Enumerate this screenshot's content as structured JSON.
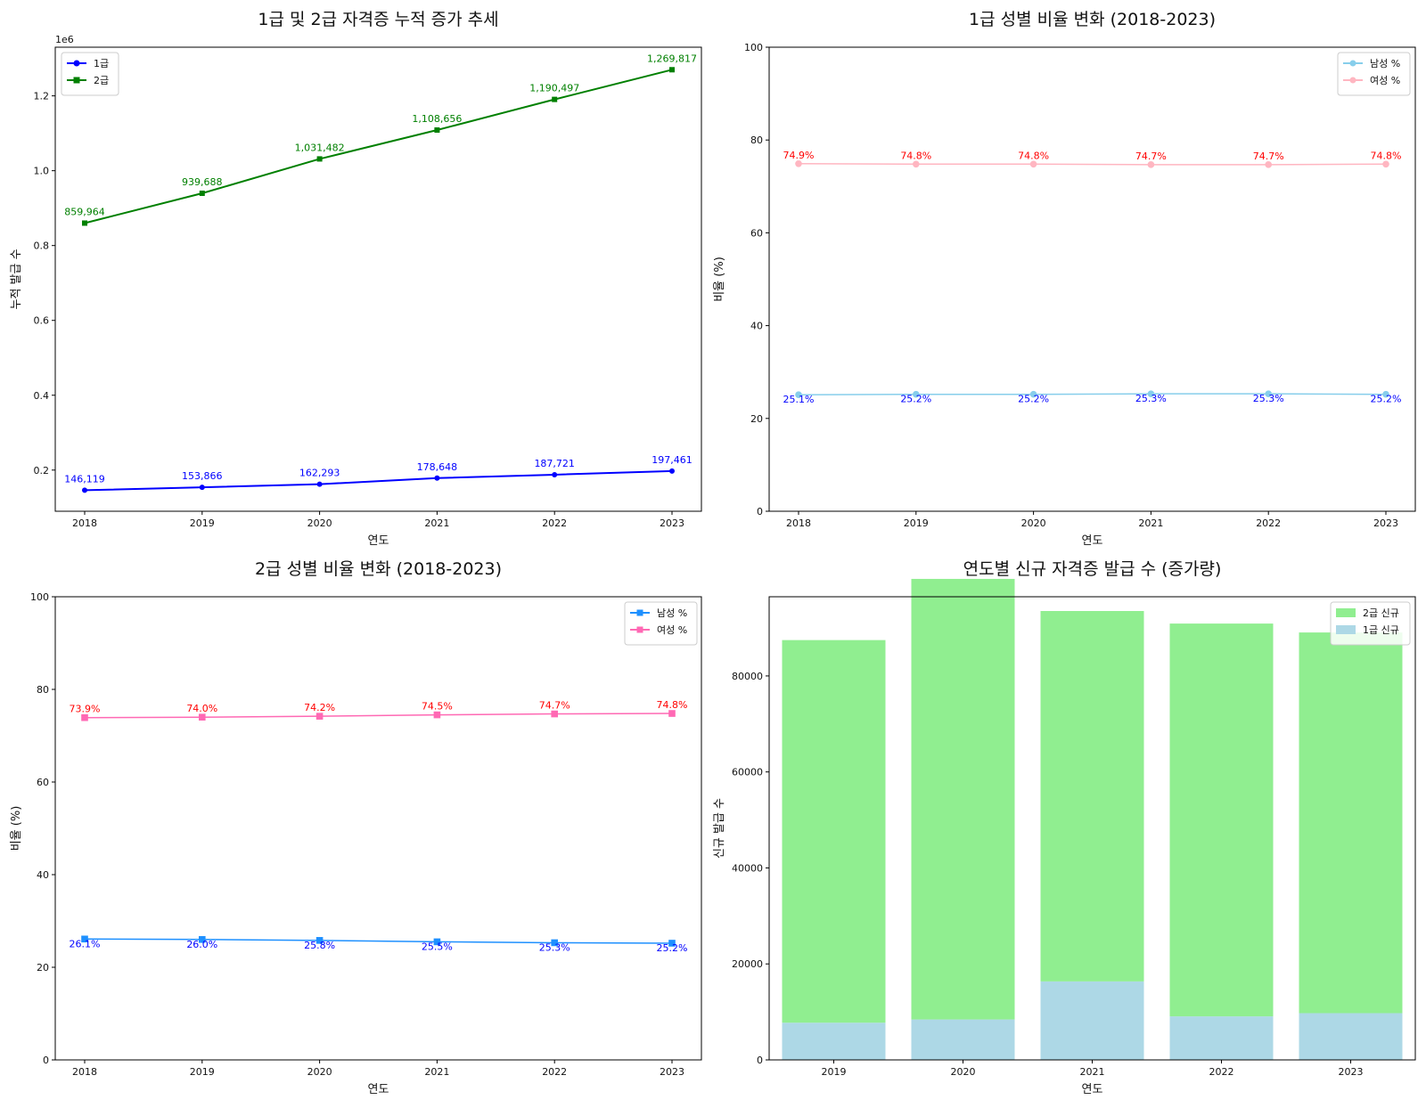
{
  "chart_data": [
    {
      "type": "line",
      "title": "1급 및 2급 자격증 누적 증가 추세",
      "xlabel": "연도",
      "ylabel": "누적 발급 수",
      "offset_text": "1e6",
      "x": [
        "2018",
        "2019",
        "2020",
        "2021",
        "2022",
        "2023"
      ],
      "ylim": [
        0.09,
        1.33
      ],
      "yticks": [
        0.2,
        0.4,
        0.6,
        0.8,
        1.0,
        1.2
      ],
      "ytick_labels": [
        "0.2",
        "0.4",
        "0.6",
        "0.8",
        "1.0",
        "1.2"
      ],
      "value_scale": 1000000,
      "legend_position": "upper-left",
      "series": [
        {
          "name": "1급",
          "color": "#0000ff",
          "marker": "circle",
          "values": [
            146119,
            153866,
            162293,
            178648,
            187721,
            197461
          ],
          "labels": [
            "146,119",
            "153,866",
            "162,293",
            "178,648",
            "187,721",
            "197,461"
          ]
        },
        {
          "name": "2급",
          "color": "#008000",
          "marker": "square",
          "values": [
            859964,
            939688,
            1031482,
            1108656,
            1190497,
            1269817
          ],
          "labels": [
            "859,964",
            "939,688",
            "1,031,482",
            "1,108,656",
            "1,190,497",
            "1,269,817"
          ]
        }
      ]
    },
    {
      "type": "line",
      "title": "1급 성별 비율 변화 (2018-2023)",
      "xlabel": "연도",
      "ylabel": "비율 (%)",
      "x": [
        "2018",
        "2019",
        "2020",
        "2021",
        "2022",
        "2023"
      ],
      "ylim": [
        0,
        100
      ],
      "yticks": [
        0,
        20,
        40,
        60,
        80,
        100
      ],
      "ytick_labels": [
        "0",
        "20",
        "40",
        "60",
        "80",
        "100"
      ],
      "legend_position": "upper-right",
      "series": [
        {
          "name": "남성 %",
          "color": "#87ceeb",
          "marker": "circle",
          "label_color": "#0000ff",
          "values": [
            25.1,
            25.2,
            25.2,
            25.3,
            25.3,
            25.2
          ],
          "labels": [
            "25.1%",
            "25.2%",
            "25.2%",
            "25.3%",
            "25.3%",
            "25.2%"
          ]
        },
        {
          "name": "여성 %",
          "color": "#ffb6c1",
          "marker": "circle",
          "label_color": "#ff0000",
          "values": [
            74.9,
            74.8,
            74.8,
            74.7,
            74.7,
            74.8
          ],
          "labels": [
            "74.9%",
            "74.8%",
            "74.8%",
            "74.7%",
            "74.7%",
            "74.8%"
          ]
        }
      ]
    },
    {
      "type": "line",
      "title": "2급 성별 비율 변화 (2018-2023)",
      "xlabel": "연도",
      "ylabel": "비율 (%)",
      "x": [
        "2018",
        "2019",
        "2020",
        "2021",
        "2022",
        "2023"
      ],
      "ylim": [
        0,
        100
      ],
      "yticks": [
        0,
        20,
        40,
        60,
        80,
        100
      ],
      "ytick_labels": [
        "0",
        "20",
        "40",
        "60",
        "80",
        "100"
      ],
      "legend_position": "upper-right",
      "series": [
        {
          "name": "남성 %",
          "color": "#1e90ff",
          "marker": "square",
          "label_color": "#0000ff",
          "values": [
            26.1,
            26.0,
            25.8,
            25.5,
            25.3,
            25.2
          ],
          "labels": [
            "26.1%",
            "26.0%",
            "25.8%",
            "25.5%",
            "25.3%",
            "25.2%"
          ]
        },
        {
          "name": "여성 %",
          "color": "#ff69b4",
          "marker": "square",
          "label_color": "#ff0000",
          "values": [
            73.9,
            74.0,
            74.2,
            74.5,
            74.7,
            74.8
          ],
          "labels": [
            "73.9%",
            "74.0%",
            "74.2%",
            "74.5%",
            "74.7%",
            "74.8%"
          ]
        }
      ]
    },
    {
      "type": "bar",
      "stacked": true,
      "title": "연도별 신규 자격증 발급 수 (증가량)",
      "xlabel": "연도",
      "ylabel": "신규 발급 수",
      "categories": [
        "2019",
        "2020",
        "2021",
        "2022",
        "2023"
      ],
      "ylim": [
        0,
        96500
      ],
      "yticks": [
        0,
        20000,
        40000,
        60000,
        80000
      ],
      "ytick_labels": [
        "0",
        "20000",
        "40000",
        "60000",
        "80000"
      ],
      "legend_position": "upper-right",
      "series": [
        {
          "name": "1급 신규",
          "color": "#add8e6",
          "values": [
            7747,
            8427,
            16355,
            9073,
            9740
          ]
        },
        {
          "name": "2급 신규",
          "color": "#90ee90",
          "values": [
            79724,
            91794,
            77174,
            81841,
            79320
          ]
        }
      ]
    }
  ]
}
